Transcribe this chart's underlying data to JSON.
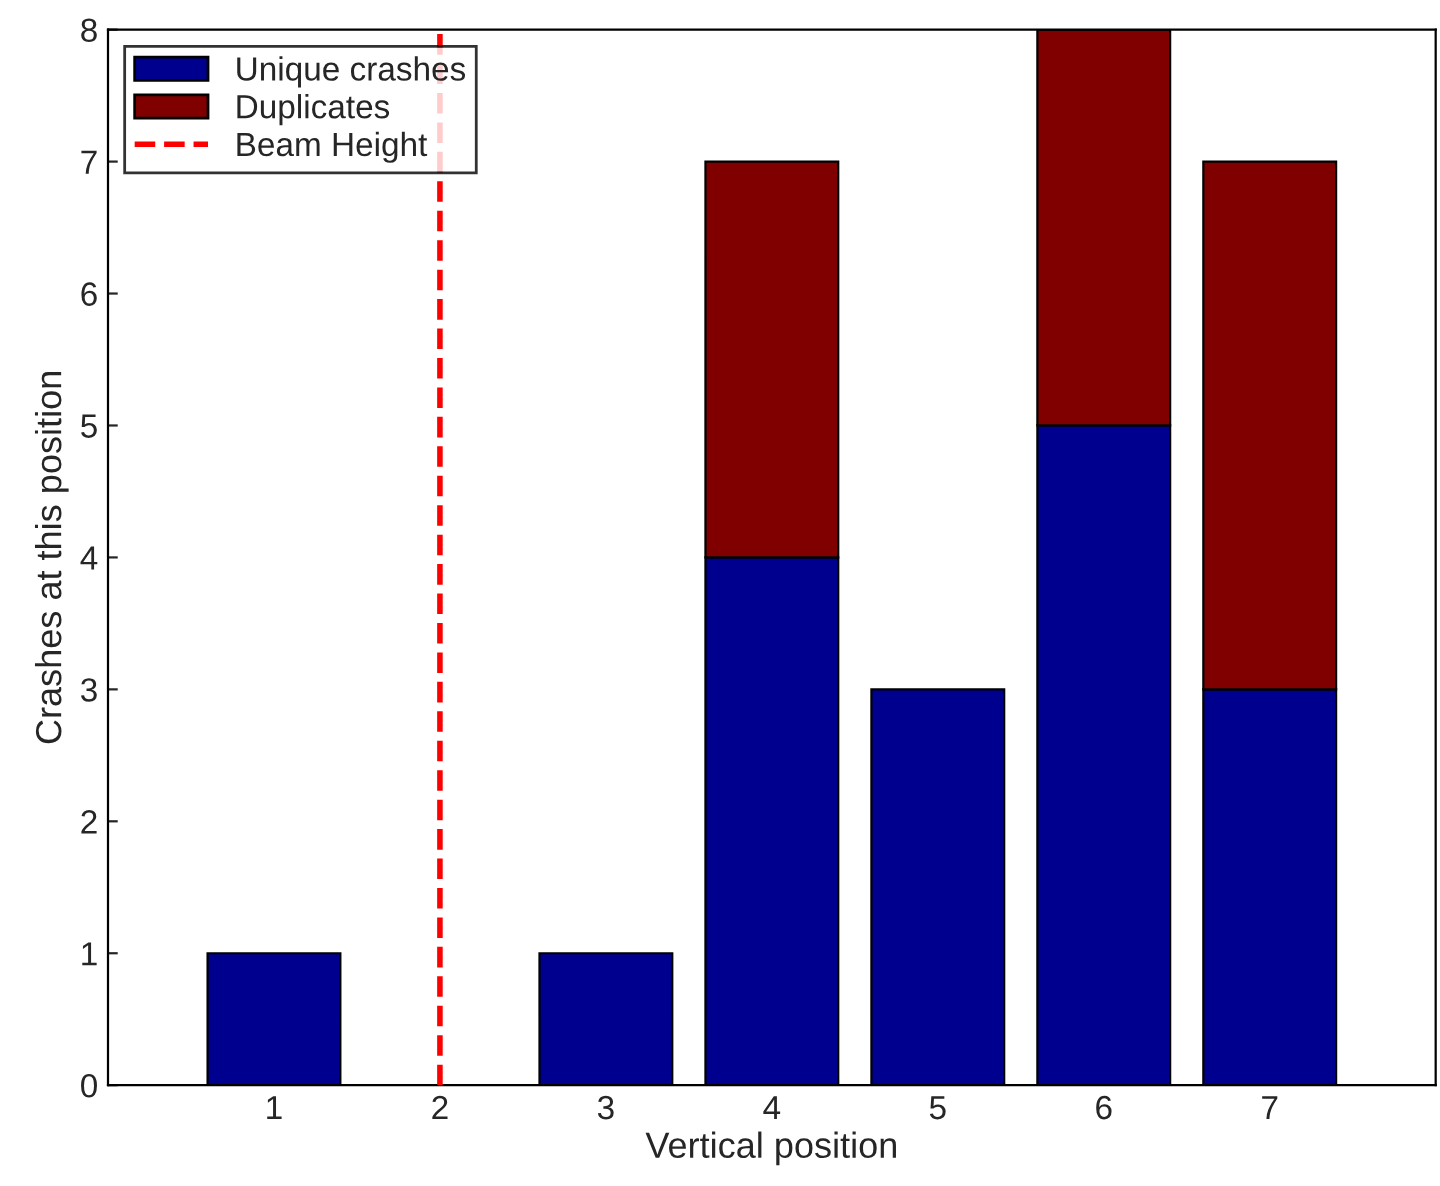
{
  "chart_data": {
    "type": "bar",
    "stacked": true,
    "xlabel": "Vertical position",
    "ylabel": "Crashes at this position",
    "x": [
      1,
      2,
      3,
      4,
      5,
      6,
      7
    ],
    "series": [
      {
        "name": "Unique crashes",
        "color": "#00008f",
        "values": [
          1,
          null,
          1,
          4,
          3,
          5,
          3
        ]
      },
      {
        "name": "Duplicates",
        "color": "#800000",
        "values": [
          null,
          null,
          null,
          3,
          null,
          3,
          4
        ]
      }
    ],
    "xlim": [
      0,
      8
    ],
    "xticks": [
      1,
      2,
      3,
      4,
      5,
      6,
      7
    ],
    "ylim": [
      0,
      8
    ],
    "yticks": [
      0,
      1,
      2,
      3,
      4,
      5,
      6,
      7,
      8
    ],
    "ref_lines": [
      {
        "axis": "x",
        "value": 2,
        "label": "Beam Height",
        "color": "#ff0000",
        "line_style": "dashed"
      }
    ],
    "legend": "top left",
    "grid": false
  }
}
